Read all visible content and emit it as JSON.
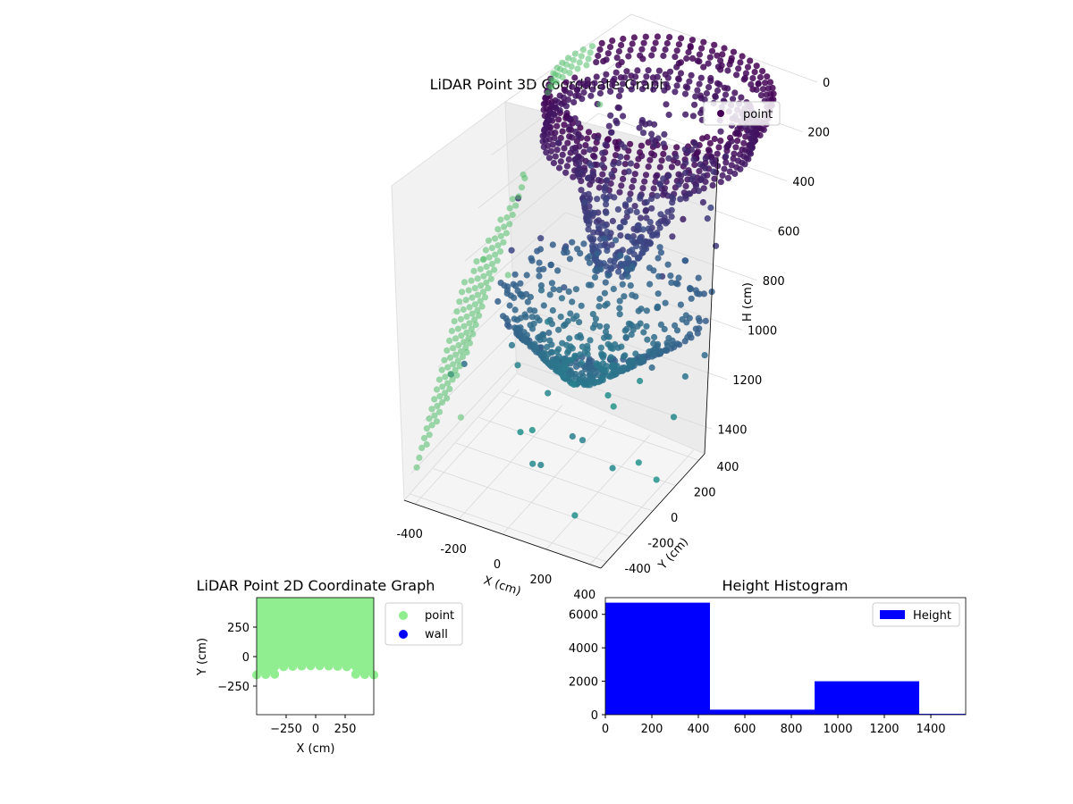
{
  "chart_data": [
    {
      "type": "scatter",
      "projection": "3d",
      "title": "LiDAR Point 3D Coordinate Graph",
      "xlabel": "X (cm)",
      "ylabel": "Y (cm)",
      "zlabel": "H (cm)",
      "x_ticks": [
        "-400",
        "-200",
        "0",
        "200",
        "400"
      ],
      "y_ticks": [
        "-400",
        "-200",
        "0",
        "200",
        "400"
      ],
      "z_ticks": [
        "0",
        "200",
        "400",
        "600",
        "800",
        "1000",
        "1200",
        "1400"
      ],
      "z_inverted": true,
      "colormap": "viridis",
      "legend": [
        "point"
      ],
      "legend_position": "top-right",
      "structures": [
        {
          "kind": "ring",
          "h": 0,
          "r": 450
        },
        {
          "kind": "ring",
          "h": 120,
          "r": 420
        },
        {
          "kind": "dome",
          "h": [
            0,
            700
          ],
          "r": [
            400,
            60
          ]
        },
        {
          "kind": "bowl",
          "h": [
            800,
            1100
          ],
          "r": [
            80,
            450
          ]
        },
        {
          "kind": "wall",
          "x": -450,
          "y": [
            -400,
            400
          ],
          "h": [
            700,
            1400
          ]
        }
      ]
    },
    {
      "type": "scatter",
      "title": "LiDAR Point 2D Coordinate Graph",
      "xlabel": "X (cm)",
      "ylabel": "Y (cm)",
      "x_ticks": [
        "−250",
        "0",
        "250"
      ],
      "y_ticks": [
        "250",
        "0",
        "−250"
      ],
      "xlim": [
        -500,
        500
      ],
      "ylim": [
        -500,
        500
      ],
      "fill_region": {
        "x": [
          -500,
          500
        ],
        "y_top": 500,
        "y_bottom": -80
      },
      "series": [
        {
          "name": "point",
          "color": "#90ee90"
        },
        {
          "name": "wall",
          "color": "#0000ff"
        }
      ],
      "legend_position": "outside-right"
    },
    {
      "type": "bar",
      "title": "Height Histogram",
      "x_ticks": [
        "0",
        "200",
        "400",
        "600",
        "800",
        "1000",
        "1200",
        "1400"
      ],
      "y_ticks": [
        "0",
        "2000",
        "4000",
        "6000"
      ],
      "xlim": [
        0,
        1550
      ],
      "ylim": [
        0,
        7000
      ],
      "bins": [
        {
          "start": 0,
          "end": 450,
          "count": 6700
        },
        {
          "start": 450,
          "end": 900,
          "count": 300
        },
        {
          "start": 900,
          "end": 1350,
          "count": 2000
        },
        {
          "start": 1350,
          "end": 1550,
          "count": 50
        }
      ],
      "series": [
        {
          "name": "Height",
          "color": "#0000ff"
        }
      ],
      "legend_position": "top-right"
    }
  ]
}
